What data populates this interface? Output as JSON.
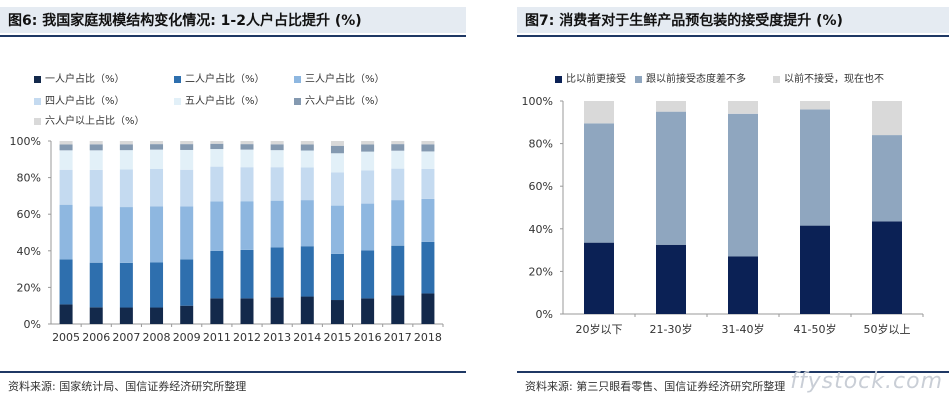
{
  "fig6": {
    "title": "图6: 我国家庭规模结构变化情况: 1-2人户占比提升 (%)",
    "source": "资料来源: 国家统计局、国信证券经济研究所整理"
  },
  "fig7": {
    "title": "图7: 消费者对于生鲜产品预包装的接受度提升 (%)",
    "source": "资料来源: 第三只眼看零售、国信证券经济研究所整理"
  },
  "watermark": "ffystock.com",
  "chart_data": [
    {
      "type": "bar",
      "stacked": true,
      "categories": [
        "2005",
        "2006",
        "2007",
        "2008",
        "2009",
        "2011",
        "2012",
        "2013",
        "2014",
        "2015",
        "2016",
        "2017",
        "2018"
      ],
      "ylim": [
        0,
        100
      ],
      "yticks": [
        "0%",
        "20%",
        "40%",
        "60%",
        "80%",
        "100%"
      ],
      "legend_position": "top",
      "series": [
        {
          "name": "一人户占比（%）",
          "color": "#13294b",
          "values": [
            10.7,
            9.1,
            9.0,
            9.0,
            10.0,
            14.0,
            14.0,
            14.6,
            15.0,
            13.1,
            14.0,
            15.6,
            16.7
          ]
        },
        {
          "name": "二人户占比（%）",
          "color": "#2e6fae",
          "values": [
            24.6,
            24.4,
            24.4,
            24.6,
            25.3,
            26.0,
            26.5,
            27.3,
            27.5,
            25.2,
            26.2,
            27.2,
            28.2
          ]
        },
        {
          "name": "三人户占比（%）",
          "color": "#8eb7e0",
          "values": [
            29.9,
            30.7,
            30.5,
            30.6,
            29.0,
            27.0,
            26.6,
            25.5,
            25.2,
            26.4,
            25.6,
            24.9,
            23.5
          ]
        },
        {
          "name": "四人户占比（%）",
          "color": "#c4daf0",
          "values": [
            19.1,
            20.0,
            20.6,
            20.5,
            20.0,
            19.0,
            18.6,
            18.3,
            17.9,
            18.1,
            18.2,
            17.2,
            16.4
          ]
        },
        {
          "name": "五人户占比（%）",
          "color": "#e2f0f8",
          "values": [
            10.6,
            10.7,
            10.5,
            10.6,
            10.8,
            9.6,
            9.6,
            9.3,
            9.2,
            10.5,
            10.2,
            9.8,
            9.5
          ]
        },
        {
          "name": "六人户占比（%）",
          "color": "#8499b0",
          "values": [
            3.2,
            3.3,
            3.2,
            3.0,
            3.2,
            2.9,
            3.0,
            3.2,
            3.3,
            4.1,
            3.9,
            3.6,
            3.9
          ]
        },
        {
          "name": "六人户以上占比（%）",
          "color": "#d9d9d9",
          "values": [
            1.9,
            1.8,
            1.8,
            1.7,
            1.7,
            1.5,
            1.7,
            1.8,
            1.9,
            2.6,
            1.9,
            1.7,
            1.8
          ]
        }
      ]
    },
    {
      "type": "bar",
      "stacked": true,
      "categories": [
        "20岁以下",
        "21-30岁",
        "31-40岁",
        "41-50岁",
        "50岁以上"
      ],
      "ylim": [
        0,
        100
      ],
      "yticks": [
        "0%",
        "20%",
        "40%",
        "60%",
        "80%",
        "100%"
      ],
      "legend_position": "top",
      "series": [
        {
          "name": "比以前更接受",
          "color": "#0b2155",
          "values": [
            33.5,
            32.5,
            27.0,
            41.5,
            43.5
          ]
        },
        {
          "name": "跟以前接受态度差不多",
          "color": "#8fa6bf",
          "values": [
            56.0,
            62.5,
            67.0,
            54.5,
            40.5
          ]
        },
        {
          "name": "以前不接受，现在也不",
          "color": "#d9d9d9",
          "values": [
            10.5,
            5.0,
            6.0,
            4.0,
            16.0
          ]
        }
      ]
    }
  ]
}
